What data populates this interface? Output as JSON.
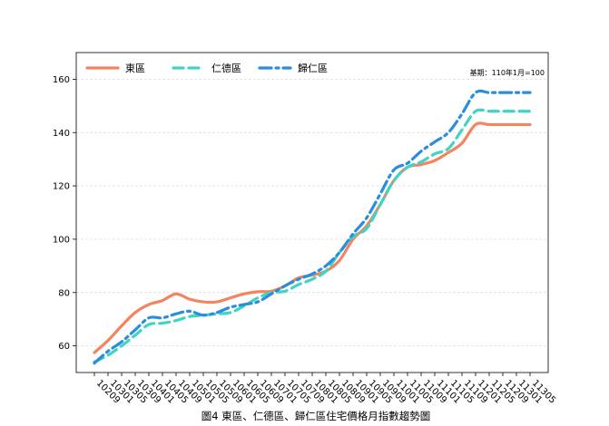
{
  "chart_data": {
    "type": "line",
    "title": "",
    "caption": "圖4 東區、仁德區、歸仁區住宅價格月指數趨勢圖",
    "note": "基期：110年1月=100",
    "xlabel": "",
    "ylabel": "",
    "ylim": [
      50,
      170
    ],
    "yticks": [
      60,
      80,
      100,
      120,
      140,
      160
    ],
    "x": [
      "10209",
      "10301",
      "10305",
      "10309",
      "10401",
      "10405",
      "10409",
      "10501",
      "10505",
      "10509",
      "10601",
      "10605",
      "10609",
      "10701",
      "10705",
      "10709",
      "10801",
      "10805",
      "10809",
      "10901",
      "10905",
      "10909",
      "11001",
      "11005",
      "11009",
      "11101",
      "11105",
      "11109",
      "11201",
      "11205",
      "11209",
      "11301",
      "11305"
    ],
    "grid": {
      "y": true,
      "x": false
    },
    "legend_position": "top-left",
    "series": [
      {
        "name": "東區",
        "color": "#f4845f",
        "style": "solid",
        "values": [
          57.5,
          62,
          67.5,
          72.5,
          75.5,
          77,
          79.5,
          77.5,
          76.5,
          76.5,
          78,
          79.5,
          80.3,
          80.5,
          82.5,
          85.5,
          86.5,
          88,
          92,
          100,
          105,
          113,
          122,
          127,
          128,
          129.5,
          132.5,
          136,
          143,
          143,
          143,
          143,
          143
        ]
      },
      {
        "name": "仁德區",
        "color": "#3fd4c4",
        "style": "dashed",
        "values": [
          54,
          56.5,
          60,
          64,
          68,
          68.5,
          69.5,
          71,
          71.5,
          72,
          72.5,
          75,
          78,
          80,
          80.5,
          83,
          85,
          88,
          95,
          101,
          104,
          113,
          122,
          127,
          129,
          132,
          134,
          141,
          148,
          148,
          148,
          148,
          148
        ]
      },
      {
        "name": "歸仁區",
        "color": "#2a8de0",
        "style": "dashdot",
        "values": [
          53.5,
          58,
          61.5,
          66,
          70.5,
          70.5,
          72,
          73,
          71.5,
          72.5,
          74.5,
          75.5,
          76.5,
          79.5,
          82.5,
          85,
          87,
          90,
          95,
          102,
          108,
          117,
          126,
          128.5,
          133,
          136.5,
          140,
          147,
          155,
          155,
          155,
          155,
          155
        ]
      }
    ]
  }
}
